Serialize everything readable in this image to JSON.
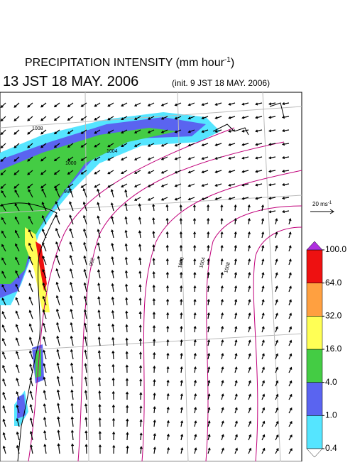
{
  "header": {
    "title": "PRECIPITATION INTENSITY (mm hour",
    "title_sup": "-1",
    "title_end": ")",
    "valid_time": "13 JST 18 MAY. 2006",
    "init_time": "(init. 9 JST 18 MAY. 2006)"
  },
  "vector_scale": {
    "label": "20 ms",
    "sup": "-1"
  },
  "colorbar": {
    "levels": [
      {
        "value": 0.4,
        "label": "0.4"
      },
      {
        "value": 1,
        "label": "1.0"
      },
      {
        "value": 4,
        "label": "4.0"
      },
      {
        "value": 16,
        "label": "16.0"
      },
      {
        "value": 32,
        "label": "32.0"
      },
      {
        "value": 64,
        "label": "64.0"
      },
      {
        "value": 100,
        "label": "100.0"
      }
    ],
    "colors": [
      "#55e5ff",
      "#5a64f0",
      "#44cc44",
      "#ffff55",
      "#ffa040",
      "#ee1111"
    ],
    "over_color": "#b030e0",
    "under_color": "#ffffff"
  },
  "contour_labels": [
    "1008",
    "1004",
    "1000",
    "996",
    "992",
    "1000",
    "1004",
    "1008"
  ]
}
